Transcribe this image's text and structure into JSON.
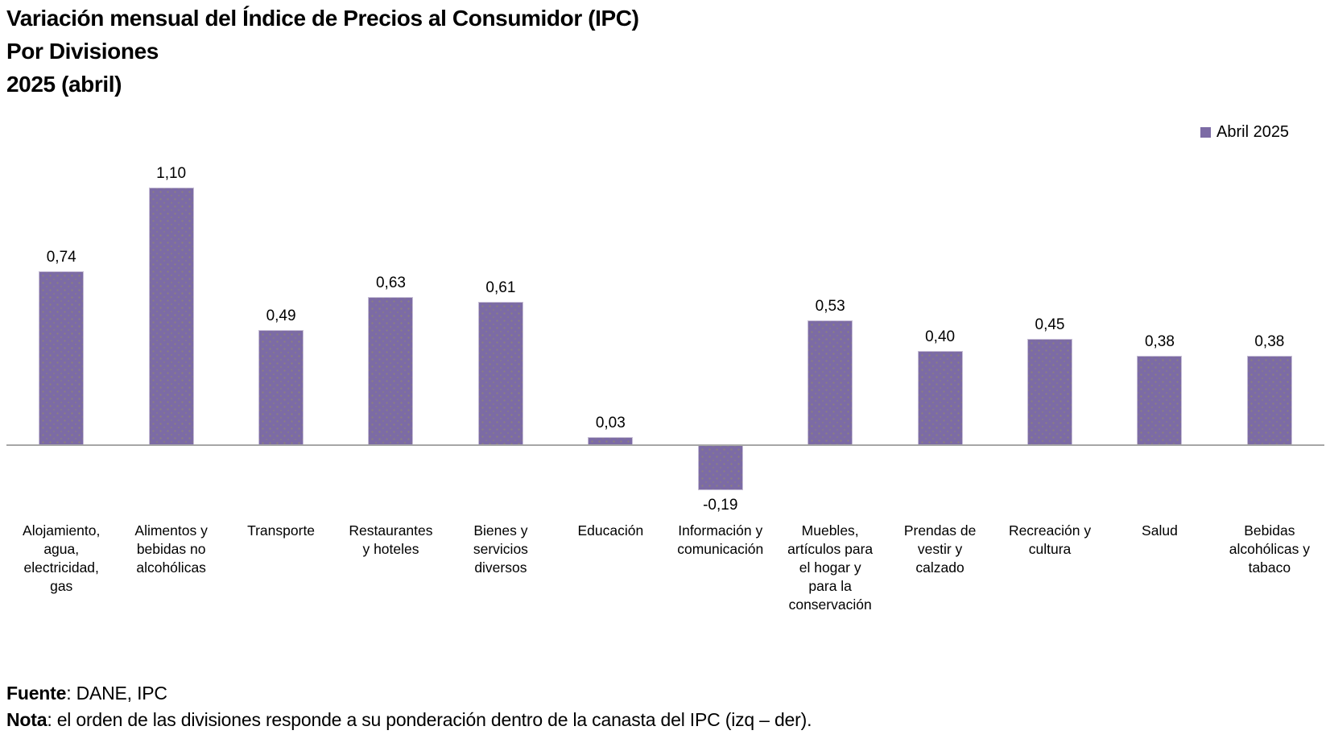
{
  "title": {
    "line1": "Variación mensual del Índice de Precios al Consumidor (IPC)",
    "line2": "Por Divisiones",
    "line3": "2025 (abril)"
  },
  "legend": {
    "label": "Abril 2025",
    "marker_color": "#7c6ba5"
  },
  "chart_data": {
    "type": "bar",
    "title": "Variación mensual del Índice de Precios al Consumidor (IPC) — Por Divisiones — 2025 (abril)",
    "series": [
      {
        "name": "Abril 2025",
        "values": [
          0.74,
          1.1,
          0.49,
          0.63,
          0.61,
          0.03,
          -0.19,
          0.53,
          0.4,
          0.45,
          0.38,
          0.38
        ],
        "value_labels": [
          "0,74",
          "1,10",
          "0,49",
          "0,63",
          "0,61",
          "0,03",
          "-0,19",
          "0,53",
          "0,40",
          "0,45",
          "0,38",
          "0,38"
        ]
      }
    ],
    "categories": [
      "Alojamiento, agua, electricidad, gas",
      "Alimentos y bebidas no alcohólicas",
      "Transporte",
      "Restaurantes y hoteles",
      "Bienes y servicios diversos",
      "Educación",
      "Información y comunicación",
      "Muebles, artículos para el hogar y para la conservación",
      "Prendas de vestir y calzado",
      "Recreación y cultura",
      "Salud",
      "Bebidas alcohólicas y tabaco"
    ],
    "tick_labels": [
      "Alojamiento,\nagua,\nelectricidad,\ngas",
      "Alimentos y\nbebidas no\nalcohólicas",
      "Transporte",
      "Restaurantes\ny hoteles",
      "Bienes y\nservicios\ndiversos",
      "Educación",
      "Información y\ncomunicación",
      "Muebles,\nartículos para\nel hogar y\npara la\nconservación",
      "Prendas de\nvestir y\ncalzado",
      "Recreación y\ncultura",
      "Salud",
      "Bebidas\nalcohólicas y\ntabaco"
    ],
    "xlabel": "",
    "ylabel": "",
    "ylim": [
      -0.3,
      1.2
    ],
    "grid": false,
    "legend_position": "top-right",
    "bar_color": "#7c6ba5",
    "axis_color": "#a6a6a6"
  },
  "footer": {
    "source_label": "Fuente",
    "source_text": ": DANE, IPC",
    "note_label": "Nota",
    "note_text": ": el orden de las divisiones responde a su ponderación dentro de la canasta del IPC (izq – der)."
  }
}
